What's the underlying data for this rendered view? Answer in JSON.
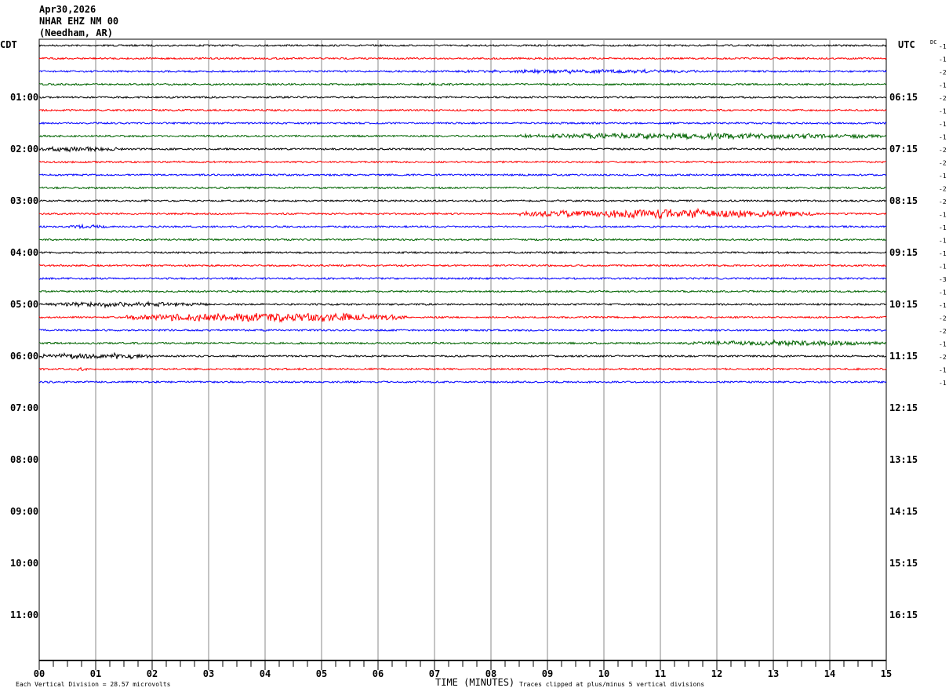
{
  "header": {
    "date": "Apr30,2026",
    "station": "NHAR EHZ NM 00",
    "location": "(Needham, AR)"
  },
  "chart_data": {
    "type": "line",
    "left_timezone": "CDT",
    "right_timezone": "UTC",
    "dc_label": "DC",
    "left_hour_labels": [
      "01:00",
      "02:00",
      "03:00",
      "04:00",
      "05:00",
      "06:00",
      "07:00",
      "08:00",
      "09:00",
      "10:00",
      "11:00"
    ],
    "right_hour_labels": [
      "06:15",
      "07:15",
      "08:15",
      "09:15",
      "10:15",
      "11:15",
      "12:15",
      "13:15",
      "14:15",
      "15:15",
      "16:15"
    ],
    "x_ticks": [
      "00",
      "01",
      "02",
      "03",
      "04",
      "05",
      "06",
      "07",
      "08",
      "09",
      "10",
      "11",
      "12",
      "13",
      "14",
      "15"
    ],
    "xlabel": "TIME (MINUTES)",
    "xlim": [
      0,
      15
    ],
    "minutes_per_line": 15,
    "trace_colors": [
      "#000000",
      "#ff0000",
      "#0000ff",
      "#006400"
    ],
    "dc_offsets": [
      -1,
      -1,
      -2,
      -1,
      -2,
      -1,
      -1,
      -1,
      -2,
      -2,
      -1,
      -2,
      -2,
      -1,
      -1,
      -1,
      -1,
      -1,
      -3,
      -1,
      -1,
      -2,
      -2,
      -1,
      -2,
      -1,
      -1
    ],
    "events": [
      {
        "trace": 2,
        "start_min": 7.3,
        "end_min": 12,
        "amp": 2.2
      },
      {
        "trace": 3,
        "start_min": 6.5,
        "end_min": 7.5,
        "amp": 1.5
      },
      {
        "trace": 7,
        "start_min": 8.5,
        "end_min": 15,
        "amp": 3.5
      },
      {
        "trace": 8,
        "start_min": 0,
        "end_min": 1.5,
        "amp": 3
      },
      {
        "trace": 13,
        "start_min": 8.5,
        "end_min": 13.7,
        "amp": 5
      },
      {
        "trace": 14,
        "start_min": 0.5,
        "end_min": 1.3,
        "amp": 2.5
      },
      {
        "trace": 20,
        "start_min": 0,
        "end_min": 3,
        "amp": 3
      },
      {
        "trace": 21,
        "start_min": 1.5,
        "end_min": 6.5,
        "amp": 5
      },
      {
        "trace": 23,
        "start_min": 11.5,
        "end_min": 15,
        "amp": 3
      },
      {
        "trace": 24,
        "start_min": 0,
        "end_min": 2,
        "amp": 3.5
      },
      {
        "trace": 25,
        "start_min": 0.5,
        "end_min": 1,
        "amp": 2
      }
    ]
  },
  "footer": {
    "vertical_division": "Each Vertical Division =   28.57 microvolts",
    "clip_note": "Traces clipped at plus/minus 5 vertical divisions"
  }
}
